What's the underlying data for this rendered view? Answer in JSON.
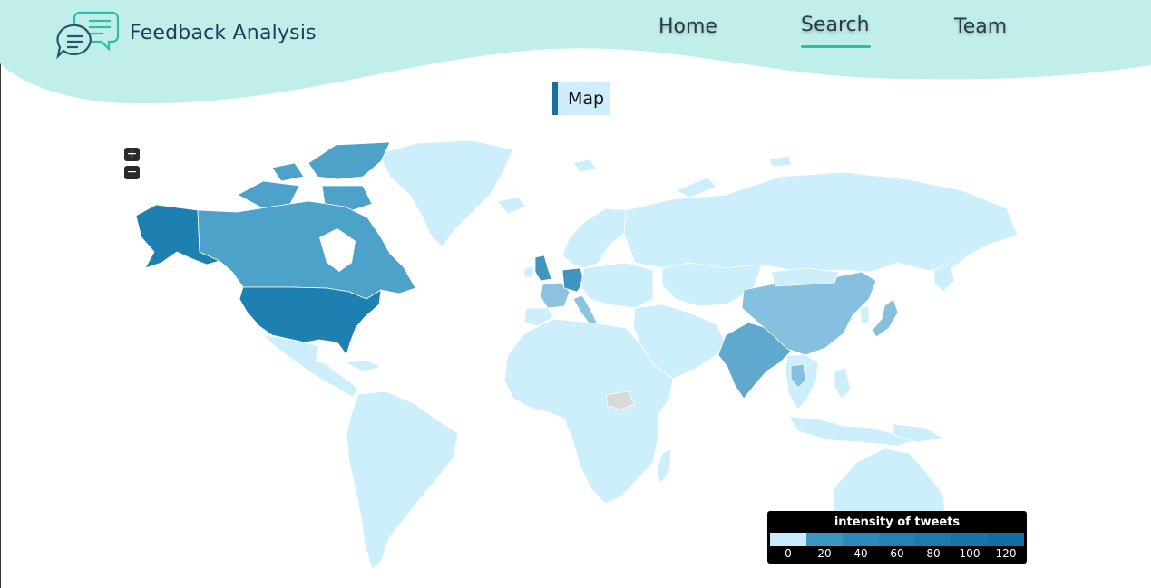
{
  "header": {
    "brand": "Feedback Analysis",
    "nav": {
      "home": "Home",
      "search": "Search",
      "team": "Team"
    },
    "active_nav": "Search"
  },
  "map": {
    "title": "Map",
    "zoom_in": "+",
    "zoom_out": "−"
  },
  "legend": {
    "title": "intensity of tweets",
    "ticks": [
      "0",
      "20",
      "40",
      "60",
      "80",
      "100",
      "120"
    ],
    "colors": [
      "#c8ecfb",
      "#3c97c2",
      "#2b8ab8",
      "#2282b3",
      "#1a7bae",
      "#1675aa",
      "#0f6ea6"
    ]
  },
  "colors": {
    "header_bg": "#c0efe9",
    "accent": "#2fbfa8",
    "land_default": "#cdeffc",
    "no_data": "#d9d9d9"
  }
}
